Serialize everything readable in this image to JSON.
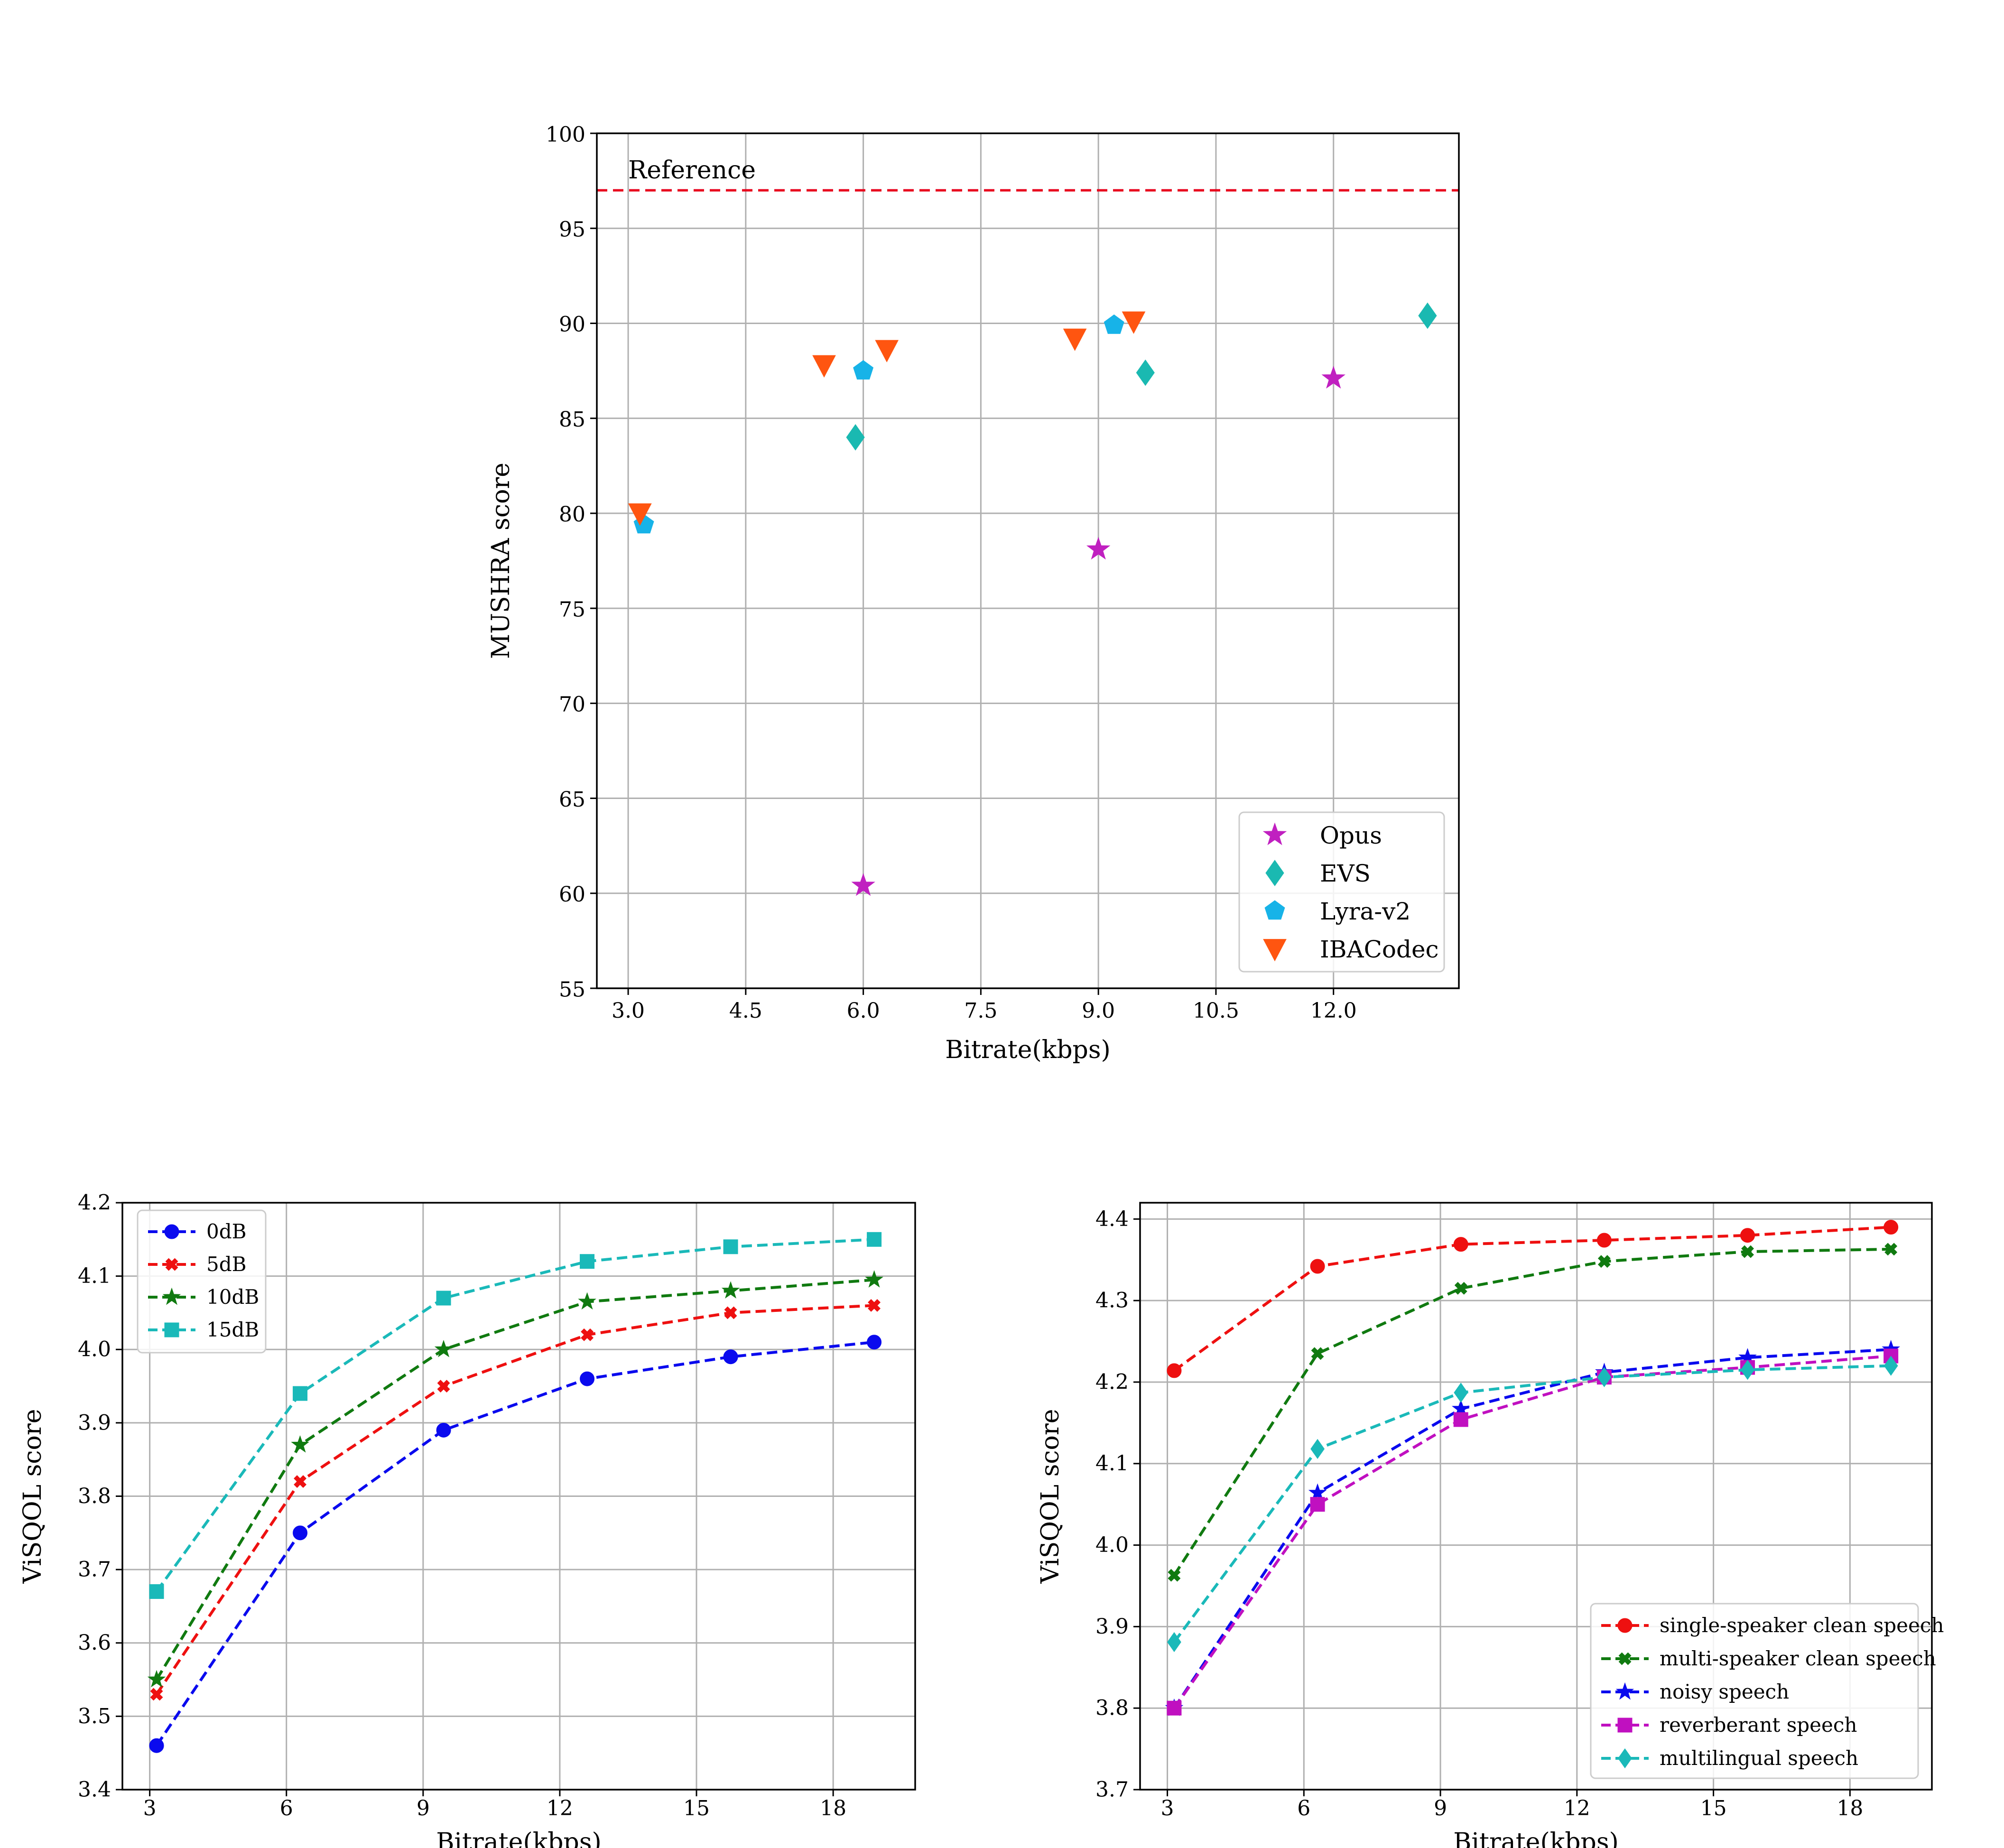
{
  "chart_data": [
    {
      "id": "mushra",
      "type": "scatter",
      "title": "",
      "xlabel": "Bitrate(kbps)",
      "ylabel": "MUSHRA score",
      "xlim": [
        2.6,
        13.6
      ],
      "ylim": [
        55,
        100
      ],
      "xticks": [
        3.0,
        4.5,
        6.0,
        7.5,
        9.0,
        10.5,
        12.0
      ],
      "xtick_labels": [
        "3.0",
        "4.5",
        "6.0",
        "7.5",
        "9.0",
        "10.5",
        "12.0"
      ],
      "yticks": [
        55,
        60,
        65,
        70,
        75,
        80,
        85,
        90,
        95,
        100
      ],
      "ytick_labels": [
        "55",
        "60",
        "65",
        "70",
        "75",
        "80",
        "85",
        "90",
        "95",
        "100"
      ],
      "grid": true,
      "legend_position": "lower-right",
      "reference": {
        "label": "Reference",
        "value": 97,
        "color": "#e8001c"
      },
      "series": [
        {
          "name": "Opus",
          "marker": "star",
          "color": "#c020c0",
          "x": [
            6.0,
            9.0,
            12.0
          ],
          "y": [
            60.4,
            78.1,
            87.1
          ]
        },
        {
          "name": "EVS",
          "marker": "diamond",
          "color": "#1ab9b1",
          "x": [
            5.9,
            9.6,
            13.2
          ],
          "y": [
            84.0,
            87.4,
            90.4
          ]
        },
        {
          "name": "Lyra-v2",
          "marker": "pentagon",
          "color": "#17b3e8",
          "x": [
            3.2,
            6.0,
            9.2
          ],
          "y": [
            79.4,
            87.5,
            89.9
          ]
        },
        {
          "name": "IBACodec",
          "marker": "triangle-down",
          "color": "#ff5510",
          "x": [
            3.15,
            5.5,
            6.3,
            8.7,
            9.45
          ],
          "y": [
            80.0,
            87.8,
            88.6,
            89.2,
            90.1
          ]
        }
      ]
    },
    {
      "id": "visqol-snr",
      "type": "line",
      "title": "",
      "xlabel": "Bitrate(kbps)",
      "ylabel": "ViSQOL score",
      "xlim": [
        2.4,
        19.8
      ],
      "ylim": [
        3.4,
        4.2
      ],
      "xticks": [
        3,
        6,
        9,
        12,
        15,
        18
      ],
      "xtick_labels": [
        "3",
        "6",
        "9",
        "12",
        "15",
        "18"
      ],
      "yticks": [
        3.4,
        3.5,
        3.6,
        3.7,
        3.8,
        3.9,
        4.0,
        4.1,
        4.2
      ],
      "ytick_labels": [
        "3.4",
        "3.5",
        "3.6",
        "3.7",
        "3.8",
        "3.9",
        "4.0",
        "4.1",
        "4.2"
      ],
      "grid": true,
      "legend_position": "top-left",
      "x": [
        3.15,
        6.3,
        9.45,
        12.6,
        15.75,
        18.9
      ],
      "series": [
        {
          "name": "0dB",
          "marker": "circle",
          "color": "#0a0aee",
          "values": [
            3.46,
            3.75,
            3.89,
            3.96,
            3.99,
            4.01
          ]
        },
        {
          "name": "5dB",
          "marker": "x",
          "color": "#ee1010",
          "values": [
            3.53,
            3.82,
            3.95,
            4.02,
            4.05,
            4.06
          ]
        },
        {
          "name": "10dB",
          "marker": "star",
          "color": "#107a10",
          "values": [
            3.55,
            3.87,
            4.0,
            4.065,
            4.08,
            4.095
          ]
        },
        {
          "name": "15dB",
          "marker": "square",
          "color": "#1ab9b9",
          "values": [
            3.67,
            3.94,
            4.07,
            4.12,
            4.14,
            4.15
          ]
        }
      ]
    },
    {
      "id": "visqol-conditions",
      "type": "line",
      "title": "",
      "xlabel": "Bitrate(kbps)",
      "ylabel": "ViSQOL score",
      "xlim": [
        2.4,
        19.8
      ],
      "ylim": [
        3.7,
        4.42
      ],
      "xticks": [
        3,
        6,
        9,
        12,
        15,
        18
      ],
      "xtick_labels": [
        "3",
        "6",
        "9",
        "12",
        "15",
        "18"
      ],
      "yticks": [
        3.7,
        3.8,
        3.9,
        4.0,
        4.1,
        4.2,
        4.3,
        4.4
      ],
      "ytick_labels": [
        "3.7",
        "3.8",
        "3.9",
        "4.0",
        "4.1",
        "4.2",
        "4.3",
        "4.4"
      ],
      "grid": true,
      "legend_position": "lower-right",
      "x": [
        3.15,
        6.3,
        9.45,
        12.6,
        15.75,
        18.9
      ],
      "series": [
        {
          "name": "single-speaker clean speech",
          "marker": "circle",
          "color": "#ee1010",
          "values": [
            4.214,
            4.342,
            4.369,
            4.374,
            4.38,
            4.39
          ]
        },
        {
          "name": "multi-speaker clean speech",
          "marker": "x",
          "color": "#107a10",
          "values": [
            3.963,
            4.235,
            4.315,
            4.348,
            4.36,
            4.363
          ]
        },
        {
          "name": "noisy speech",
          "marker": "star",
          "color": "#0a0aee",
          "values": [
            3.8,
            4.064,
            4.167,
            4.212,
            4.23,
            4.24
          ]
        },
        {
          "name": "reverberant speech",
          "marker": "square",
          "color": "#c010c0",
          "values": [
            3.8,
            4.05,
            4.154,
            4.206,
            4.218,
            4.232
          ]
        },
        {
          "name": "multilingual speech",
          "marker": "diamond",
          "color": "#1ab9b9",
          "values": [
            3.881,
            4.118,
            4.187,
            4.206,
            4.215,
            4.22
          ]
        }
      ]
    }
  ]
}
